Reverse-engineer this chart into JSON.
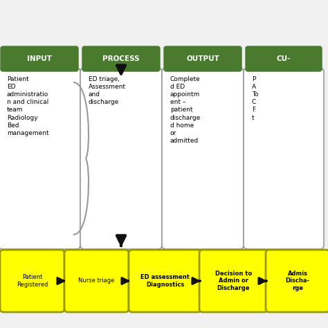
{
  "background_color": "#f0f0f0",
  "green_color": "#4a7a2e",
  "yellow_color": "#ffff00",
  "yellow_border": "#999900",
  "white_border": "#999999",
  "arrow_color": "#111111",
  "col_headers": [
    "INPUT",
    "PROCESS",
    "OUTPUT",
    "CU-"
  ],
  "col_bodies": [
    "Patient\nED\nadministratio\nn and clinical\nteam\nRadiology\nBed\nmanagement",
    "ED triage,\nAssessment\nand\ndischarge",
    "Complete\nd ED\nappointm\nent –\npatient\ndischarge\nd home\nor\nadmitted",
    "P\nA\nTo\nC\nF.\nt"
  ],
  "bottom_labels": [
    "Patient\nRegistered",
    "Nurse triage",
    "ED assessment\nDiagnostics",
    "Decision to\nAdmin or\nDischarge",
    "Admis\nDischa-\nrge"
  ],
  "bottom_bold": [
    false,
    false,
    true,
    true,
    true
  ]
}
